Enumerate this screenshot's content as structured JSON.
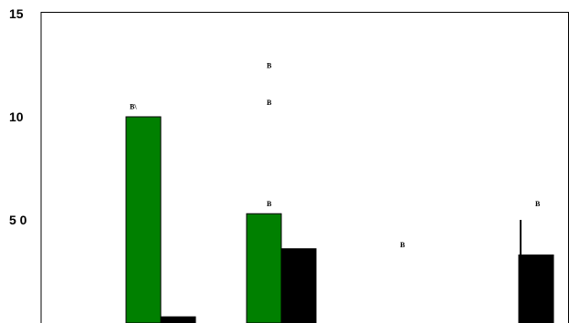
{
  "chart_data": {
    "type": "bar",
    "title": "",
    "xlabel": "",
    "ylabel": "",
    "ylim": [
      0,
      15
    ],
    "grid": false,
    "legend": "none",
    "y_tick_labels": [
      {
        "value": 15,
        "label": "15"
      },
      {
        "value": 10,
        "label": "10"
      },
      {
        "value": 5,
        "label": "5 0"
      }
    ],
    "categories": [
      "",
      "",
      "",
      ""
    ],
    "series": [
      {
        "color": "#008000",
        "values": [
          10,
          5.3,
          0,
          0
        ]
      },
      {
        "color": "#000000",
        "values": [
          0.3,
          3.6,
          0,
          3.3
        ]
      }
    ],
    "error_bars": [
      {
        "category": 3,
        "series": 1,
        "low": 3.3,
        "high": 5.0
      }
    ],
    "markers": [
      {
        "label": "B\\",
        "category": 0,
        "value": 10.5
      },
      {
        "label": "B",
        "category": 1,
        "value": 12.5
      },
      {
        "label": "B",
        "category": 1,
        "value": 10.7
      },
      {
        "label": "B",
        "category": 1,
        "value": 5.8
      },
      {
        "label": "B",
        "category": 2,
        "value": 3.8
      },
      {
        "label": "B",
        "category": 3,
        "value": 5.8
      }
    ]
  }
}
